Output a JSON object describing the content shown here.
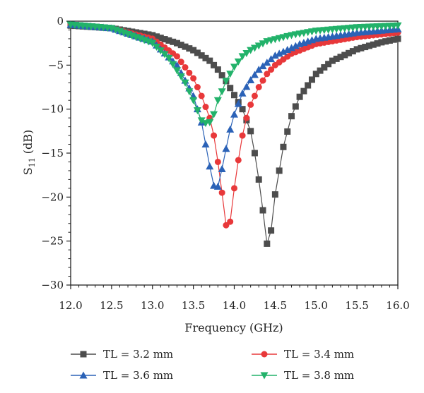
{
  "chart_data": {
    "type": "line",
    "xlabel": "Frequency (GHz)",
    "ylabel_main": "S",
    "ylabel_sub": "11",
    "ylabel_unit": " (dB)",
    "xlim": [
      12.0,
      16.0
    ],
    "ylim": [
      -30,
      0
    ],
    "x_ticks": [
      12.0,
      12.5,
      13.0,
      13.5,
      14.0,
      14.5,
      15.0,
      15.5,
      16.0
    ],
    "x_tick_labels": [
      "12.0",
      "12.5",
      "13.0",
      "13.5",
      "14.0",
      "14.5",
      "15.0",
      "15.5",
      "16.0"
    ],
    "y_ticks": [
      0,
      -5,
      -10,
      -15,
      -20,
      -25,
      -30
    ],
    "y_tick_labels": [
      "0",
      "−5",
      "−10",
      "−15",
      "−20",
      "−25",
      "−30"
    ],
    "grid": false,
    "legend_position": "bottom",
    "series": [
      {
        "name": "TL = 3.2 mm",
        "color": "#4d4d4d",
        "marker": "square",
        "x": [
          12.0,
          12.5,
          13.0,
          13.3,
          13.5,
          13.7,
          13.8,
          13.9,
          14.0,
          14.1,
          14.2,
          14.25,
          14.3,
          14.35,
          14.4,
          14.45,
          14.5,
          14.6,
          14.7,
          14.8,
          15.0,
          15.2,
          15.5,
          15.8,
          16.0
        ],
        "y": [
          -0.5,
          -0.8,
          -1.6,
          -2.5,
          -3.3,
          -4.5,
          -5.5,
          -6.8,
          -8.4,
          -10.0,
          -12.5,
          -15.0,
          -18.0,
          -21.5,
          -25.3,
          -23.8,
          -19.7,
          -14.3,
          -10.8,
          -8.6,
          -6.0,
          -4.5,
          -3.2,
          -2.4,
          -2.0
        ]
      },
      {
        "name": "TL = 3.4 mm",
        "color": "#e8383a",
        "marker": "circle",
        "x": [
          12.0,
          12.5,
          13.0,
          13.3,
          13.5,
          13.6,
          13.7,
          13.75,
          13.8,
          13.85,
          13.9,
          13.95,
          14.0,
          14.05,
          14.1,
          14.15,
          14.2,
          14.3,
          14.4,
          14.5,
          14.7,
          15.0,
          15.5,
          16.0
        ],
        "y": [
          -0.4,
          -0.8,
          -2.0,
          -4.0,
          -6.5,
          -8.5,
          -11.0,
          -13.0,
          -16.0,
          -19.5,
          -23.2,
          -22.8,
          -19.0,
          -15.8,
          -13.0,
          -11.0,
          -9.5,
          -7.5,
          -6.0,
          -5.0,
          -3.7,
          -2.6,
          -1.8,
          -1.3
        ]
      },
      {
        "name": "TL = 3.6 mm",
        "color": "#2b62b7",
        "marker": "triangle-up",
        "x": [
          12.0,
          12.5,
          13.0,
          13.3,
          13.5,
          13.6,
          13.65,
          13.7,
          13.75,
          13.8,
          13.85,
          13.9,
          13.95,
          14.0,
          14.1,
          14.2,
          14.3,
          14.5,
          14.8,
          15.0,
          15.5,
          16.0
        ],
        "y": [
          -0.4,
          -0.8,
          -2.3,
          -5.0,
          -8.5,
          -11.5,
          -14.0,
          -16.5,
          -18.7,
          -18.8,
          -16.8,
          -14.5,
          -12.3,
          -10.6,
          -8.2,
          -6.7,
          -5.5,
          -3.9,
          -2.6,
          -2.0,
          -1.3,
          -0.9
        ]
      },
      {
        "name": "TL = 3.8 mm",
        "color": "#22b26a",
        "marker": "triangle-down",
        "x": [
          12.0,
          12.5,
          13.0,
          13.2,
          13.4,
          13.5,
          13.6,
          13.65,
          13.7,
          13.75,
          13.8,
          13.85,
          13.9,
          14.0,
          14.1,
          14.2,
          14.4,
          14.7,
          15.0,
          15.5,
          16.0
        ],
        "y": [
          -0.4,
          -0.8,
          -2.5,
          -4.2,
          -7.0,
          -9.0,
          -11.3,
          -11.6,
          -11.5,
          -10.6,
          -9.0,
          -8.0,
          -6.8,
          -5.2,
          -4.0,
          -3.3,
          -2.3,
          -1.6,
          -1.1,
          -0.7,
          -0.5
        ]
      }
    ]
  }
}
